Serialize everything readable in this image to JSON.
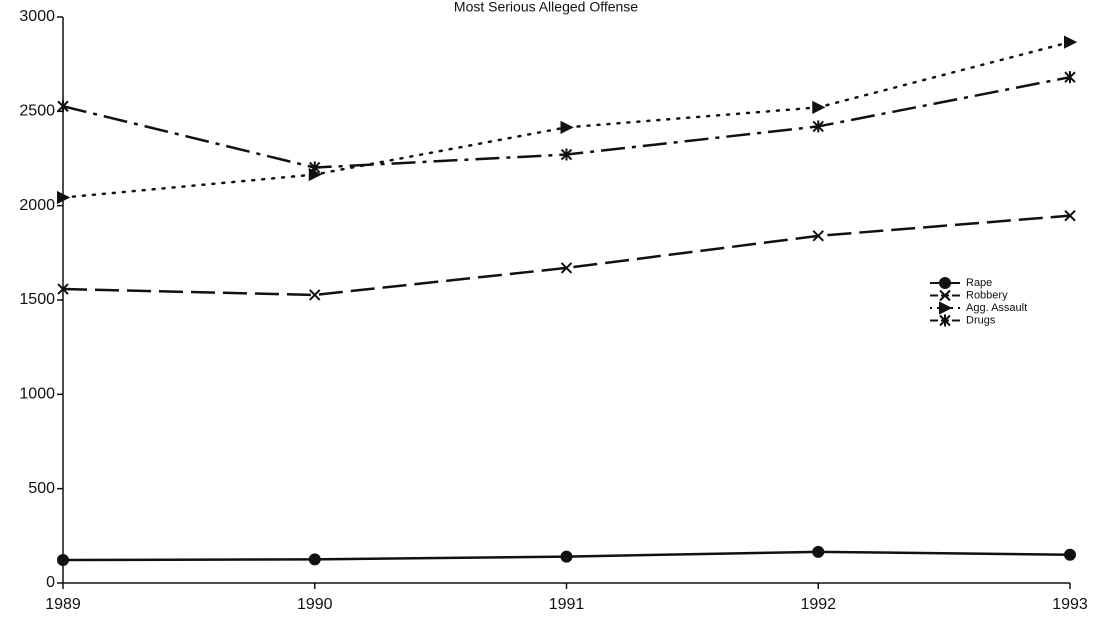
{
  "chart_data": {
    "type": "line",
    "title": "Most Serious Alleged Offense",
    "categories": [
      "1989",
      "1990",
      "1991",
      "1992",
      "1993"
    ],
    "series": [
      {
        "name": "Rape",
        "color": "#111111",
        "line_style": "solid",
        "marker": "circle",
        "values": [
          122,
          125,
          140,
          165,
          150
        ]
      },
      {
        "name": "Robbery",
        "color": "#111111",
        "line_style": "dashed",
        "marker": "x",
        "values": [
          1558,
          1527,
          1670,
          1840,
          1947
        ]
      },
      {
        "name": "Agg. Assault",
        "color": "#111111",
        "line_style": "dotted",
        "marker": "triangle",
        "values": [
          2043,
          2165,
          2415,
          2521,
          2867
        ]
      },
      {
        "name": "Drugs",
        "color": "#111111",
        "line_style": "dashdot",
        "marker": "star",
        "values": [
          2527,
          2202,
          2271,
          2420,
          2681
        ]
      }
    ],
    "ylim": [
      0,
      3000
    ],
    "yticks": [
      0,
      500,
      1000,
      1500,
      2000,
      2500,
      3000
    ],
    "grid": false,
    "legend": "right"
  }
}
